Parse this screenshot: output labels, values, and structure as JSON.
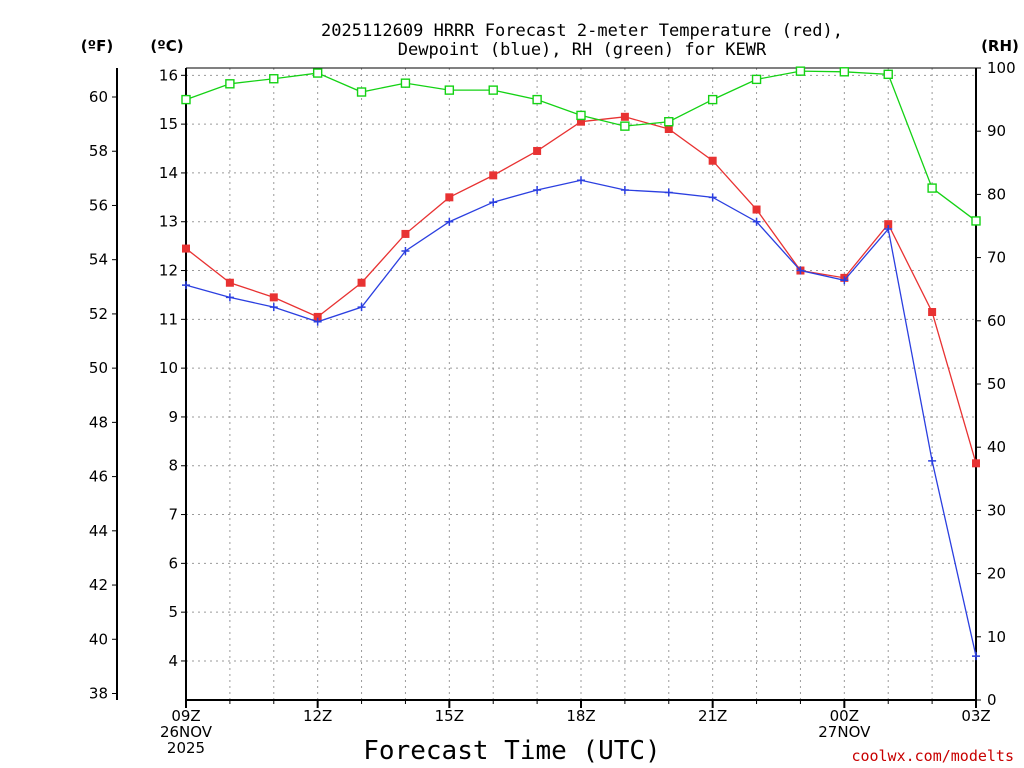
{
  "chart_data": {
    "type": "line",
    "title": "2025112609 HRRR Forecast 2-meter Temperature (red),",
    "subtitle": "Dewpoint (blue), RH (green) for KEWR",
    "xlabel": "Forecast Time (UTC)",
    "credit": "coolwx.com/modelts",
    "unit_labels": {
      "fahrenheit": "(ºF)",
      "celsius": "(ºC)",
      "rh": "(RH)"
    },
    "x_hours": [
      0,
      1,
      2,
      3,
      4,
      5,
      6,
      7,
      8,
      9,
      10,
      11,
      12,
      13,
      14,
      15,
      16,
      17,
      18
    ],
    "x_ticks": [
      {
        "hour": 0,
        "lines": [
          "09Z",
          "26NOV",
          "2025"
        ]
      },
      {
        "hour": 3,
        "lines": [
          "12Z"
        ]
      },
      {
        "hour": 6,
        "lines": [
          "15Z"
        ]
      },
      {
        "hour": 9,
        "lines": [
          "18Z"
        ]
      },
      {
        "hour": 12,
        "lines": [
          "21Z"
        ]
      },
      {
        "hour": 15,
        "lines": [
          "00Z",
          "27NOV"
        ]
      },
      {
        "hour": 18,
        "lines": [
          "03Z"
        ]
      }
    ],
    "celsius_axis": {
      "ylim": [
        3.2,
        16.15
      ],
      "ticks": [
        4,
        5,
        6,
        7,
        8,
        9,
        10,
        11,
        12,
        13,
        14,
        15,
        16
      ]
    },
    "fahrenheit_ticks": [
      38,
      40,
      42,
      44,
      46,
      48,
      50,
      52,
      54,
      56,
      58,
      60
    ],
    "rh_axis": {
      "ylim": [
        0,
        100
      ],
      "ticks": [
        0,
        10,
        20,
        30,
        40,
        50,
        60,
        70,
        80,
        90,
        100
      ]
    },
    "series": [
      {
        "name": "Temperature",
        "unit": "°C",
        "color": "#e83232",
        "marker": "filled-square",
        "values": [
          12.45,
          11.75,
          11.45,
          11.05,
          11.75,
          12.75,
          13.5,
          13.95,
          14.45,
          15.05,
          15.15,
          14.9,
          14.25,
          13.25,
          12.0,
          11.85,
          12.95,
          11.15,
          8.05
        ]
      },
      {
        "name": "Dewpoint",
        "unit": "°C",
        "color": "#2b3fe0",
        "marker": "plus",
        "values": [
          11.7,
          11.45,
          11.25,
          10.95,
          11.25,
          12.4,
          13.0,
          13.4,
          13.65,
          13.85,
          13.65,
          13.6,
          13.5,
          13.0,
          12.0,
          11.8,
          12.85,
          8.1,
          4.1
        ]
      },
      {
        "name": "RH",
        "unit": "%",
        "color": "#14d214",
        "marker": "open-square",
        "values": [
          95.0,
          97.5,
          98.3,
          99.2,
          96.2,
          97.6,
          96.5,
          96.5,
          95.0,
          92.5,
          90.8,
          91.5,
          95.0,
          98.2,
          99.5,
          99.4,
          99.0,
          81.0,
          75.8
        ]
      }
    ]
  }
}
